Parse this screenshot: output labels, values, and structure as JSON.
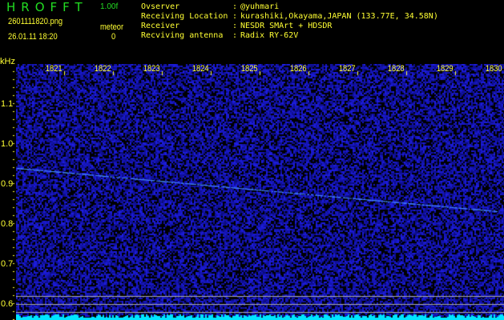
{
  "header": {
    "app_title": "HROFFT",
    "version": "1.00f",
    "filename": "2601111820.png",
    "datetime": "26.01.11 18:20",
    "meteor_label": "meteor",
    "meteor_count": "0"
  },
  "info": [
    {
      "label": "Ovserver",
      "value": "@yuhmari"
    },
    {
      "label": "Receiving Location",
      "value": "kurashiki,Okayama,JAPAN (133.77E, 34.58N)"
    },
    {
      "label": "Receiver",
      "value": "NESDR SMArt + HDSDR"
    },
    {
      "label": "Recviving antenna",
      "value": "Radix RY-62V"
    }
  ],
  "spectrogram": {
    "y_unit": "kHz",
    "x_ticks": [
      "1821",
      "1822",
      "1823",
      "1824",
      "1825",
      "1826",
      "1827",
      "1828",
      "1829",
      "1830"
    ],
    "y_ticks": [
      "1.1",
      "1.0",
      "0.9",
      "0.8",
      "0.7",
      "0.6"
    ],
    "colors": {
      "background": "#000000",
      "noise": "#2020c0",
      "trace": "#4488ff",
      "spectrum": "#00e5ff",
      "text": "#ffff33",
      "title": "#22dd22"
    }
  }
}
